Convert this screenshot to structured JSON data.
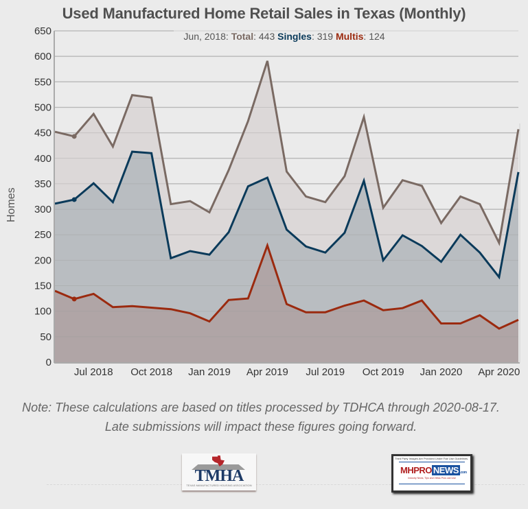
{
  "chart_data": {
    "type": "area",
    "title": "Used Manufactured Home Retail Sales in Texas (Monthly)",
    "xlabel": "",
    "ylabel": "Homes",
    "ylim": [
      0,
      650
    ],
    "yticks": [
      0,
      50,
      100,
      150,
      200,
      250,
      300,
      350,
      400,
      450,
      500,
      550,
      600,
      650
    ],
    "grid": true,
    "x": [
      "May 2018",
      "Jun 2018",
      "Jul 2018",
      "Aug 2018",
      "Sep 2018",
      "Oct 2018",
      "Nov 2018",
      "Dec 2018",
      "Jan 2019",
      "Feb 2019",
      "Mar 2019",
      "Apr 2019",
      "May 2019",
      "Jun 2019",
      "Jul 2019",
      "Aug 2019",
      "Sep 2019",
      "Oct 2019",
      "Nov 2019",
      "Dec 2019",
      "Jan 2020",
      "Feb 2020",
      "Mar 2020",
      "Apr 2020",
      "May 2020"
    ],
    "xtick_labels": [
      {
        "index": 2,
        "label": "Jul 2018"
      },
      {
        "index": 5,
        "label": "Oct 2018"
      },
      {
        "index": 8,
        "label": "Jan 2019"
      },
      {
        "index": 11,
        "label": "Apr 2019"
      },
      {
        "index": 14,
        "label": "Jul 2019"
      },
      {
        "index": 17,
        "label": "Oct 2019"
      },
      {
        "index": 20,
        "label": "Jan 2020"
      },
      {
        "index": 23,
        "label": "Apr 2020"
      }
    ],
    "series": [
      {
        "name": "Total",
        "color": "#7a6a63",
        "fill": "#dcd8d8",
        "values": [
          452,
          443,
          487,
          423,
          524,
          519,
          310,
          316,
          294,
          377,
          473,
          591,
          374,
          325,
          314,
          365,
          481,
          303,
          357,
          346,
          273,
          325,
          310,
          234,
          457
        ]
      },
      {
        "name": "Singles",
        "color": "#0a3a5a",
        "fill": "#b9bdc1",
        "values": [
          311,
          319,
          351,
          314,
          413,
          410,
          204,
          218,
          211,
          255,
          345,
          362,
          260,
          227,
          215,
          254,
          356,
          200,
          249,
          228,
          197,
          250,
          215,
          167,
          373
        ]
      },
      {
        "name": "Multis",
        "color": "#9b2a0f",
        "fill": "#b0a5a6",
        "values": [
          140,
          124,
          134,
          108,
          110,
          107,
          104,
          96,
          80,
          122,
          125,
          229,
          114,
          98,
          98,
          111,
          121,
          102,
          106,
          121,
          76,
          76,
          92,
          66,
          83
        ]
      }
    ],
    "tooltip": {
      "index": 1,
      "date": "Jun, 2018:",
      "total_label": "Total",
      "total_value": ": 443",
      "singles_label": "Singles",
      "singles_value": ": 319",
      "multis_label": "Multis",
      "multis_value": ": 124"
    }
  },
  "note": "Note: These calculations are based on titles processed by TDHCA through 2020-08-17. Late submissions will impact these figures going forward.",
  "logos": {
    "tmha": {
      "word": "TMHA",
      "subtitle": "TEXAS MANUFACTURED HOUSING ASSOCIATION"
    },
    "mhpronews": {
      "top": "Third Party Images Are Provided Under Fair Use Guidelines.",
      "mh": "MHPRO",
      "news": "NEWS",
      "com": ".com",
      "tagline": "Industry News, Tips and Views Pros can Use"
    }
  }
}
